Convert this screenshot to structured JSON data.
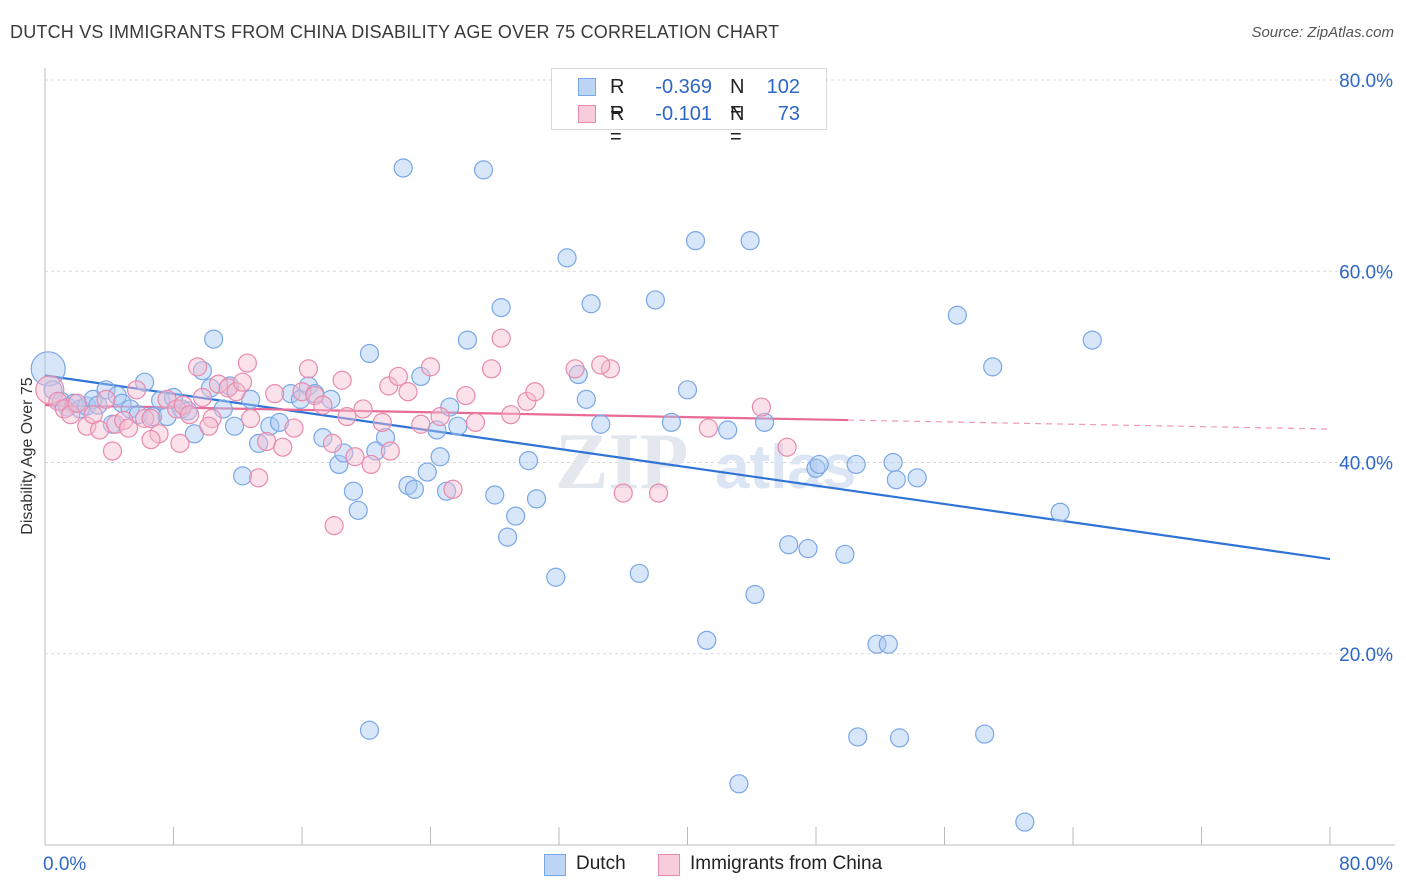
{
  "title": "DUTCH VS IMMIGRANTS FROM CHINA DISABILITY AGE OVER 75 CORRELATION CHART",
  "source": "Source: ZipAtlas.com",
  "colors": {
    "blue_fill": "#a9c8f2",
    "blue_stroke": "#7aa7e6",
    "blue_line": "#2f74d6",
    "pink_fill": "#f5bcd0",
    "pink_stroke": "#e98aac",
    "pink_line": "#e86c98",
    "axis_label": "#2d67c7",
    "grid": "#d8d8d8"
  },
  "legend": {
    "r_label": "R =",
    "n_label": "N =",
    "rows": [
      {
        "series": "Dutch",
        "r": "-0.369",
        "n": "102"
      },
      {
        "series": "Immigrants from China",
        "r": "-0.101",
        "n": "73"
      }
    ]
  },
  "chart_data": {
    "type": "scatter",
    "title": "DUTCH VS IMMIGRANTS FROM CHINA DISABILITY AGE OVER 75 CORRELATION CHART",
    "xlabel": "",
    "ylabel": "Disability Age Over 75",
    "xlim": [
      0,
      80
    ],
    "ylim": [
      0,
      80
    ],
    "x_tick_labels": [
      "0.0%",
      "80.0%"
    ],
    "y_ticks": [
      20,
      40,
      60,
      80
    ],
    "y_tick_labels": [
      "20.0%",
      "40.0%",
      "60.0%",
      "80.0%"
    ],
    "grid": true,
    "legend_position": "top-center",
    "watermark": "ZIPatlas",
    "series": [
      {
        "name": "Dutch",
        "r": -0.369,
        "n": 102,
        "trend": {
          "x": [
            0,
            80
          ],
          "y": [
            49.1,
            29.9
          ],
          "dashed_from": null
        },
        "points": [
          [
            0.2,
            49.8
          ],
          [
            0.5,
            47.6
          ],
          [
            1.0,
            46.4
          ],
          [
            1.4,
            45.8
          ],
          [
            1.8,
            46.2
          ],
          [
            2.2,
            45.6
          ],
          [
            2.6,
            45.9
          ],
          [
            3.0,
            46.6
          ],
          [
            3.3,
            46.0
          ],
          [
            3.8,
            47.6
          ],
          [
            4.2,
            44.0
          ],
          [
            4.5,
            47.0
          ],
          [
            4.8,
            46.2
          ],
          [
            5.3,
            45.6
          ],
          [
            5.8,
            45.0
          ],
          [
            6.2,
            48.4
          ],
          [
            6.7,
            44.8
          ],
          [
            7.2,
            46.5
          ],
          [
            7.6,
            44.8
          ],
          [
            8.0,
            46.8
          ],
          [
            8.5,
            45.6
          ],
          [
            8.9,
            45.4
          ],
          [
            9.3,
            43.0
          ],
          [
            9.8,
            49.6
          ],
          [
            10.3,
            47.8
          ],
          [
            11.1,
            45.6
          ],
          [
            11.5,
            48.0
          ],
          [
            11.8,
            43.8
          ],
          [
            12.3,
            38.6
          ],
          [
            12.8,
            46.6
          ],
          [
            13.3,
            42.0
          ],
          [
            14.0,
            43.8
          ],
          [
            14.6,
            44.2
          ],
          [
            15.3,
            47.2
          ],
          [
            15.9,
            46.6
          ],
          [
            16.4,
            48.0
          ],
          [
            16.8,
            47.2
          ],
          [
            17.3,
            42.6
          ],
          [
            17.8,
            46.6
          ],
          [
            18.3,
            39.8
          ],
          [
            18.6,
            41.0
          ],
          [
            19.2,
            37.0
          ],
          [
            19.5,
            35.0
          ],
          [
            20.2,
            51.4
          ],
          [
            20.6,
            41.2
          ],
          [
            21.2,
            42.6
          ],
          [
            22.3,
            70.8
          ],
          [
            22.6,
            37.6
          ],
          [
            23.0,
            37.2
          ],
          [
            23.4,
            49.0
          ],
          [
            23.8,
            39.0
          ],
          [
            24.4,
            43.4
          ],
          [
            24.6,
            40.6
          ],
          [
            25.2,
            45.8
          ],
          [
            25.7,
            43.8
          ],
          [
            26.3,
            52.8
          ],
          [
            27.3,
            70.6
          ],
          [
            28.0,
            36.6
          ],
          [
            28.4,
            56.2
          ],
          [
            28.8,
            32.2
          ],
          [
            29.3,
            34.4
          ],
          [
            30.1,
            40.2
          ],
          [
            30.6,
            36.2
          ],
          [
            31.8,
            28.0
          ],
          [
            32.5,
            61.4
          ],
          [
            33.2,
            49.2
          ],
          [
            33.7,
            46.6
          ],
          [
            34.0,
            56.6
          ],
          [
            34.6,
            44.0
          ],
          [
            37.0,
            28.4
          ],
          [
            38.0,
            57.0
          ],
          [
            39.0,
            44.2
          ],
          [
            40.0,
            47.6
          ],
          [
            40.5,
            63.2
          ],
          [
            41.2,
            21.4
          ],
          [
            42.5,
            43.4
          ],
          [
            43.9,
            63.2
          ],
          [
            44.2,
            26.2
          ],
          [
            44.8,
            44.2
          ],
          [
            46.3,
            31.4
          ],
          [
            47.5,
            31.0
          ],
          [
            48.0,
            39.4
          ],
          [
            48.2,
            39.8
          ],
          [
            49.8,
            30.4
          ],
          [
            50.5,
            39.8
          ],
          [
            51.8,
            21.0
          ],
          [
            52.5,
            21.0
          ],
          [
            52.8,
            40.0
          ],
          [
            53.0,
            38.2
          ],
          [
            53.2,
            11.2
          ],
          [
            54.3,
            38.4
          ],
          [
            56.8,
            55.4
          ],
          [
            58.5,
            11.6
          ],
          [
            59.0,
            50.0
          ],
          [
            61.0,
            2.4
          ],
          [
            63.2,
            34.8
          ],
          [
            65.2,
            52.8
          ],
          [
            43.2,
            6.4
          ],
          [
            10.5,
            52.9
          ],
          [
            20.2,
            12.0
          ],
          [
            50.6,
            11.3
          ],
          [
            25.0,
            37.0
          ]
        ]
      },
      {
        "name": "Immigrants from China",
        "r": -0.101,
        "n": 73,
        "trend": {
          "x": [
            0,
            80
          ],
          "y": [
            46.0,
            43.5
          ],
          "dashed_from": 50
        },
        "points": [
          [
            0.3,
            47.6
          ],
          [
            0.8,
            46.4
          ],
          [
            1.2,
            45.6
          ],
          [
            1.6,
            45.0
          ],
          [
            2.0,
            46.2
          ],
          [
            2.6,
            43.8
          ],
          [
            3.0,
            45.0
          ],
          [
            3.4,
            43.4
          ],
          [
            3.8,
            46.6
          ],
          [
            4.4,
            44.0
          ],
          [
            4.9,
            44.4
          ],
          [
            5.2,
            43.6
          ],
          [
            5.7,
            47.6
          ],
          [
            6.2,
            44.6
          ],
          [
            6.6,
            44.6
          ],
          [
            7.1,
            43.0
          ],
          [
            7.6,
            46.6
          ],
          [
            8.2,
            45.6
          ],
          [
            8.6,
            46.0
          ],
          [
            9.0,
            45.0
          ],
          [
            9.5,
            50.0
          ],
          [
            9.8,
            46.8
          ],
          [
            10.4,
            44.6
          ],
          [
            10.8,
            48.2
          ],
          [
            11.4,
            47.8
          ],
          [
            11.9,
            47.4
          ],
          [
            12.3,
            48.4
          ],
          [
            12.8,
            44.6
          ],
          [
            13.3,
            38.4
          ],
          [
            13.8,
            42.2
          ],
          [
            14.3,
            47.2
          ],
          [
            14.8,
            41.6
          ],
          [
            15.5,
            43.6
          ],
          [
            16.0,
            47.4
          ],
          [
            16.4,
            49.8
          ],
          [
            16.8,
            47.0
          ],
          [
            17.3,
            46.0
          ],
          [
            17.9,
            42.0
          ],
          [
            18.5,
            48.6
          ],
          [
            18.8,
            44.8
          ],
          [
            19.3,
            40.6
          ],
          [
            19.8,
            45.6
          ],
          [
            20.3,
            39.8
          ],
          [
            21.0,
            44.2
          ],
          [
            21.4,
            48.0
          ],
          [
            22.0,
            49.0
          ],
          [
            22.6,
            47.4
          ],
          [
            23.4,
            44.0
          ],
          [
            24.0,
            50.0
          ],
          [
            24.6,
            44.8
          ],
          [
            25.4,
            37.2
          ],
          [
            26.2,
            47.0
          ],
          [
            27.8,
            49.8
          ],
          [
            28.4,
            53.0
          ],
          [
            29.0,
            45.0
          ],
          [
            30.0,
            46.4
          ],
          [
            35.2,
            49.8
          ],
          [
            36.0,
            36.8
          ],
          [
            38.2,
            36.8
          ],
          [
            41.3,
            43.6
          ],
          [
            44.6,
            45.8
          ],
          [
            46.2,
            41.6
          ],
          [
            34.6,
            50.2
          ],
          [
            33.0,
            49.8
          ],
          [
            12.6,
            50.4
          ],
          [
            18.0,
            33.4
          ],
          [
            21.5,
            41.2
          ],
          [
            10.2,
            43.8
          ],
          [
            8.4,
            42.0
          ],
          [
            4.2,
            41.2
          ],
          [
            6.6,
            42.4
          ],
          [
            30.5,
            47.4
          ],
          [
            26.8,
            44.2
          ]
        ]
      }
    ]
  },
  "x_labels": {
    "left": "0.0%",
    "right": "80.0%"
  }
}
